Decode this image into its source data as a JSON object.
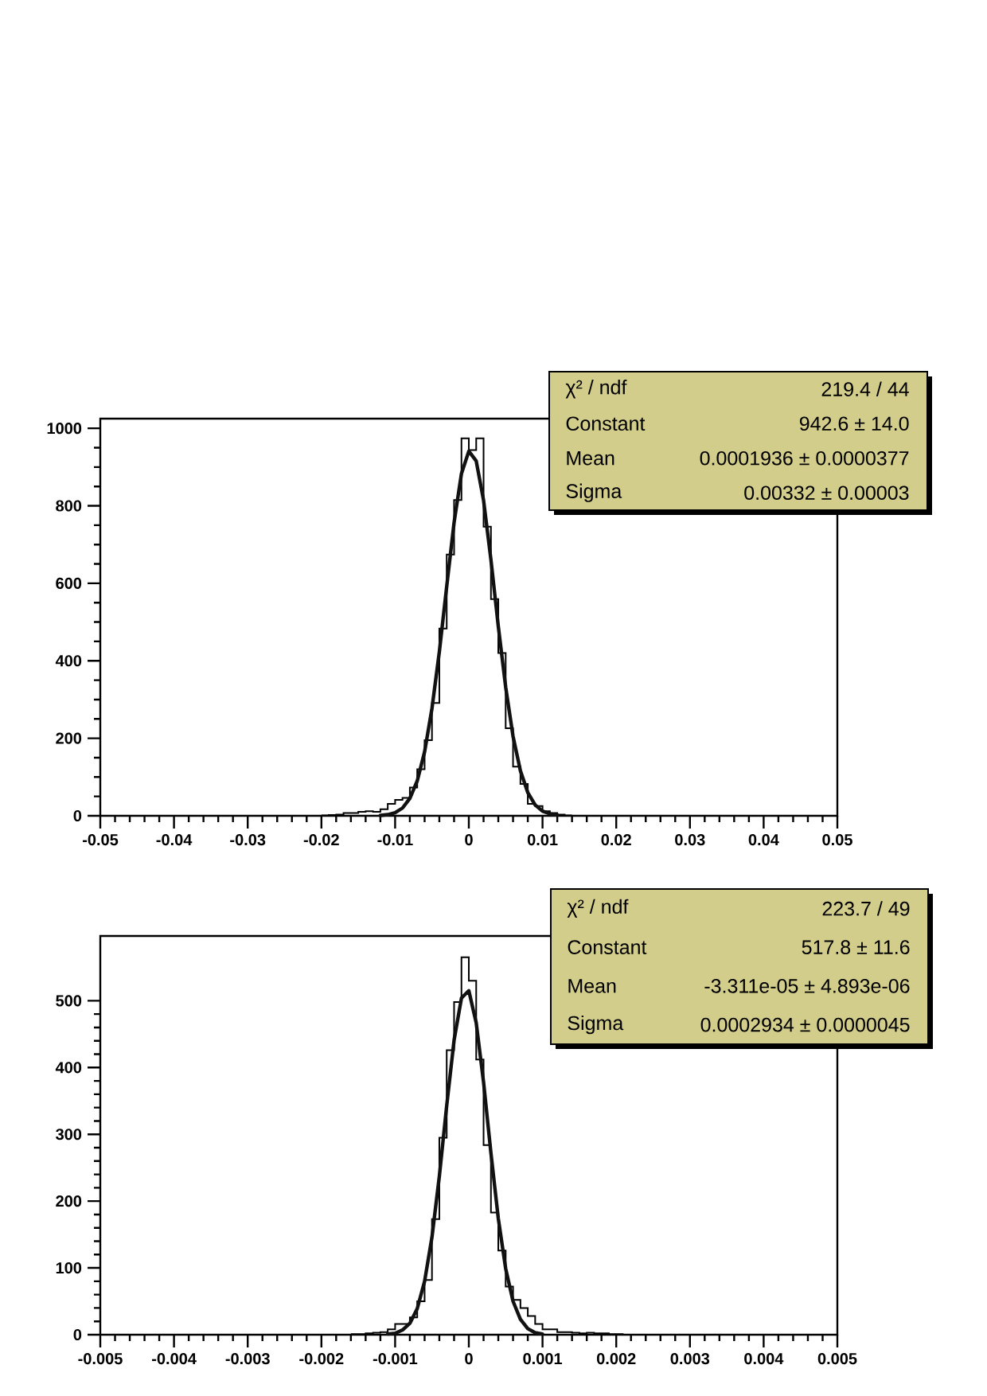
{
  "chart_data": [
    {
      "type": "histogram",
      "xlim": [
        -0.05,
        0.05
      ],
      "ylim": [
        0,
        1025
      ],
      "xticks": [
        -0.05,
        -0.04,
        -0.03,
        -0.02,
        -0.01,
        0,
        0.01,
        0.02,
        0.03,
        0.04,
        0.05
      ],
      "yticks": [
        0,
        200,
        400,
        600,
        800,
        1000
      ],
      "series": [
        {
          "type": "histogram",
          "color": "#000000",
          "bins": [
            -0.02,
            -0.019,
            -0.018,
            -0.017,
            -0.016,
            -0.015,
            -0.014,
            -0.013,
            -0.012,
            -0.011,
            -0.01,
            -0.009,
            -0.008,
            -0.007,
            -0.006,
            -0.005,
            -0.004,
            -0.003,
            -0.002,
            -0.001,
            0,
            0.001,
            0.002,
            0.003,
            0.004,
            0.005,
            0.006,
            0.007,
            0.008,
            0.009,
            0.01,
            0.011,
            0.012,
            0.013,
            0.014
          ],
          "values": [
            1,
            2,
            3,
            7,
            7,
            10,
            12,
            10,
            17,
            31,
            41,
            46,
            73,
            120,
            195,
            291,
            483,
            674,
            815,
            974,
            944,
            974,
            746,
            559,
            420,
            226,
            127,
            82,
            31,
            25,
            12,
            7,
            3,
            1
          ]
        },
        {
          "type": "line",
          "color": "#111111",
          "x": [
            -0.012,
            -0.011,
            -0.01,
            -0.009,
            -0.008,
            -0.007,
            -0.006,
            -0.005,
            -0.004,
            -0.003,
            -0.002,
            -0.001,
            0,
            0.001,
            0.002,
            0.003,
            0.004,
            0.005,
            0.006,
            0.007,
            0.008,
            0.009,
            0.01,
            0.011,
            0.012
          ],
          "values": [
            1,
            3,
            8,
            20,
            45,
            90,
            165,
            277,
            423,
            592,
            757,
            883,
            941,
            916,
            814,
            661,
            489,
            332,
            205,
            116,
            60,
            28,
            12,
            5,
            2
          ]
        }
      ],
      "annotations": [
        "χ² / ndf",
        "219.4 / 44",
        "Constant",
        "942.6 ± 14.0",
        "Mean",
        "0.0001936 ± 0.0000377",
        "Sigma",
        "0.00332 ± 0.00003"
      ]
    },
    {
      "type": "histogram",
      "xlim": [
        -0.005,
        0.005
      ],
      "ylim": [
        0,
        597
      ],
      "xticks": [
        -0.005,
        -0.004,
        -0.003,
        -0.002,
        -0.001,
        0,
        0.001,
        0.002,
        0.003,
        0.004,
        0.005
      ],
      "yticks": [
        0,
        100,
        200,
        300,
        400,
        500
      ],
      "series": [
        {
          "type": "histogram",
          "color": "#000000",
          "bins": [
            -0.0016,
            -0.0015,
            -0.0014,
            -0.0013,
            -0.0012,
            -0.0011,
            -0.001,
            -0.0009,
            -0.0008,
            -0.0007,
            -0.0006,
            -0.0005,
            -0.0004,
            -0.0003,
            -0.0002,
            -0.0001,
            0,
            0.0001,
            0.0002,
            0.0003,
            0.0004,
            0.0005,
            0.0006,
            0.0007,
            0.0008,
            0.0009,
            0.001,
            0.0011,
            0.0012,
            0.0013,
            0.0014,
            0.0015,
            0.0016,
            0.0017,
            0.0018,
            0.0019,
            0.002,
            0.0021
          ],
          "values": [
            1,
            1,
            2,
            3,
            4,
            8,
            16,
            16,
            26,
            50,
            82,
            173,
            295,
            426,
            498,
            565,
            530,
            412,
            284,
            183,
            126,
            72,
            52,
            40,
            28,
            16,
            8,
            8,
            4,
            4,
            3,
            2,
            3,
            2,
            2,
            1,
            1
          ]
        },
        {
          "type": "line",
          "color": "#111111",
          "x": [
            -0.0011,
            -0.001,
            -0.0009,
            -0.0008,
            -0.0007,
            -0.0006,
            -0.0005,
            -0.0004,
            -0.0003,
            -0.0002,
            -0.0001,
            0,
            0.0001,
            0.0002,
            0.0003,
            0.0004,
            0.0005,
            0.0006,
            0.0007,
            0.0008,
            0.0009,
            0.001
          ],
          "values": [
            1,
            2,
            7,
            17,
            39,
            80,
            146,
            237,
            343,
            441,
            504,
            515,
            467,
            378,
            272,
            174,
            99,
            50,
            23,
            9,
            3,
            1
          ]
        }
      ],
      "annotations": [
        "χ² / ndf",
        "223.7 / 49",
        "Constant",
        "517.8 ± 11.6",
        "Mean",
        "-3.311e-05 ± 4.893e-06",
        "Sigma",
        "0.0002934 ± 0.0000045"
      ]
    }
  ]
}
